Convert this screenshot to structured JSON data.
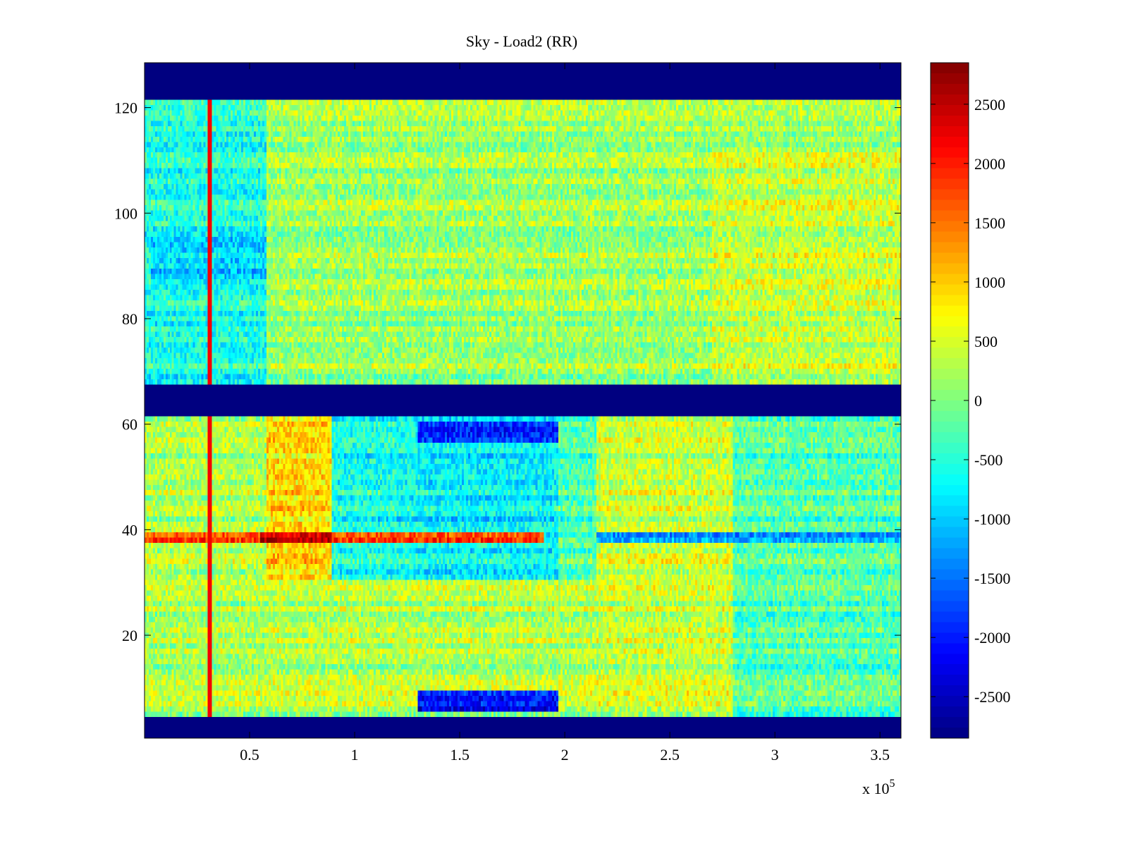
{
  "chart_data": {
    "type": "heatmap",
    "title": "Sky - Load2 (RR)",
    "xlabel": "",
    "ylabel": "",
    "x_exponent_label": "x 10",
    "x_exponent_power": "5",
    "xlim": [
      0,
      3.6
    ],
    "ylim": [
      1,
      128
    ],
    "x_ticks": [
      0.5,
      1,
      1.5,
      2,
      2.5,
      3,
      3.5
    ],
    "x_tick_labels": [
      "0.5",
      "1",
      "1.5",
      "2",
      "2.5",
      "3",
      "3.5"
    ],
    "y_ticks": [
      20,
      40,
      60,
      80,
      100,
      120
    ],
    "y_tick_labels": [
      "20",
      "40",
      "60",
      "80",
      "100",
      "120"
    ],
    "colormap": "jet",
    "clim": [
      -2850,
      2850
    ],
    "colorbar_ticks": [
      2500,
      2000,
      1500,
      1000,
      500,
      0,
      -500,
      -1000,
      -1500,
      -2000,
      -2500
    ],
    "colorbar_tick_labels": [
      "2500",
      "2000",
      "1500",
      "1000",
      "500",
      "0",
      "-500",
      "-1000",
      "-1500",
      "-2000",
      "-2500"
    ],
    "masked_rows": [
      [
        1,
        4
      ],
      [
        62,
        67
      ],
      [
        122,
        128
      ]
    ],
    "masked_value": -2850,
    "regions": [
      {
        "x": [
          0,
          0.58
        ],
        "y": [
          68,
          121
        ],
        "value": -550
      },
      {
        "x": [
          0.03,
          0.58
        ],
        "y": [
          86,
          95
        ],
        "value": -950
      },
      {
        "x": [
          0.58,
          3.6
        ],
        "y": [
          68,
          121
        ],
        "value": 150
      },
      {
        "x": [
          2.7,
          3.6
        ],
        "y": [
          68,
          112
        ],
        "value": 400
      },
      {
        "x": [
          0,
          0.58
        ],
        "y": [
          5,
          61
        ],
        "value": 250
      },
      {
        "x": [
          0.58,
          0.89
        ],
        "y": [
          5,
          61
        ],
        "value": 900
      },
      {
        "x": [
          0.89,
          1.28
        ],
        "y": [
          5,
          61
        ],
        "value": -600
      },
      {
        "x": [
          1.28,
          1.97
        ],
        "y": [
          5,
          61
        ],
        "value": -750
      },
      {
        "x": [
          1.97,
          2.15
        ],
        "y": [
          5,
          61
        ],
        "value": -300
      },
      {
        "x": [
          2.15,
          2.8
        ],
        "y": [
          5,
          61
        ],
        "value": 400
      },
      {
        "x": [
          2.8,
          3.6
        ],
        "y": [
          5,
          61
        ],
        "value": -250
      },
      {
        "x": [
          0.58,
          2.15
        ],
        "y": [
          5,
          30
        ],
        "value": 300
      },
      {
        "x": [
          1.3,
          1.97
        ],
        "y": [
          6,
          9
        ],
        "value": -2200
      },
      {
        "x": [
          1.3,
          1.97
        ],
        "y": [
          57,
          60
        ],
        "value": -2000
      },
      {
        "x": [
          0,
          1.9
        ],
        "y": [
          38,
          39
        ],
        "value": 1700
      },
      {
        "x": [
          0.55,
          0.89
        ],
        "y": [
          38,
          39
        ],
        "value": 2400
      },
      {
        "x": [
          2.15,
          3.6
        ],
        "y": [
          38,
          39
        ],
        "value": -1300
      }
    ],
    "vertical_line_x": 0.31,
    "vertical_line_value": 2200
  }
}
